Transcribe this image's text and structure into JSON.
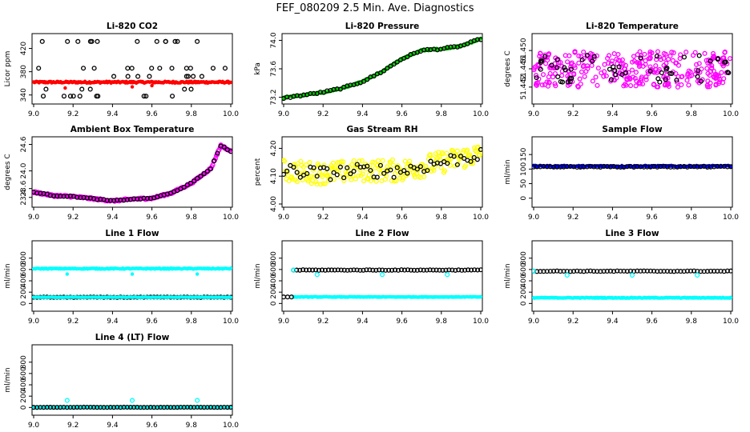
{
  "page_title": "FEF_080209  2.5 Min. Ave. Diagnostics",
  "colors": {
    "black": "#000000",
    "red": "#ff0000",
    "green": "#00cc00",
    "magenta": "#ff00ff",
    "yellow": "#ffff00",
    "blue": "#0000ff",
    "cyan": "#00ffff"
  },
  "chart_data": [
    {
      "title": "Li-820 CO2",
      "ylabel": "Licor ppm",
      "type": "scatter",
      "xlim": [
        9.0,
        10.0
      ],
      "ylim": [
        330,
        440
      ],
      "xticks": [
        "9.0",
        "9.2",
        "9.4",
        "9.6",
        "9.8",
        "10.0"
      ],
      "yticks": [
        "340",
        "380",
        "420"
      ],
      "series": [
        {
          "color": "#ff0000",
          "shape": "dense",
          "kind": "flat",
          "y": 362,
          "noise": 1.5,
          "outliers": [
            [
              9.16,
              352
            ],
            [
              9.5,
              354
            ],
            [
              9.6,
              356
            ]
          ]
        },
        {
          "color": "#000000",
          "shape": "ring",
          "kind": "scatter_levels",
          "levels": [
            338,
            350,
            372,
            386,
            432
          ]
        }
      ]
    },
    {
      "title": "Li-820 Pressure",
      "ylabel": "kPa",
      "type": "scatter",
      "xlim": [
        9.0,
        10.0
      ],
      "ylim": [
        73.15,
        74.05
      ],
      "xticks": [
        "9.0",
        "9.2",
        "9.4",
        "9.6",
        "9.8",
        "10.0"
      ],
      "yticks": [
        "73.2",
        "73.6",
        "74.0"
      ],
      "series": [
        {
          "color": "#00cc00",
          "shape": "dense",
          "kind": "curve",
          "points": [
            [
              9.0,
              73.19
            ],
            [
              9.1,
              73.23
            ],
            [
              9.2,
              73.27
            ],
            [
              9.3,
              73.33
            ],
            [
              9.4,
              73.42
            ],
            [
              9.5,
              73.56
            ],
            [
              9.6,
              73.74
            ],
            [
              9.7,
              73.86
            ],
            [
              9.8,
              73.88
            ],
            [
              9.9,
              73.92
            ],
            [
              10.0,
              74.02
            ]
          ],
          "noise": 0.012
        },
        {
          "color": "#000000",
          "shape": "ring",
          "kind": "curve",
          "points": [
            [
              9.0,
              73.19
            ],
            [
              9.1,
              73.23
            ],
            [
              9.2,
              73.27
            ],
            [
              9.3,
              73.33
            ],
            [
              9.4,
              73.42
            ],
            [
              9.5,
              73.56
            ],
            [
              9.6,
              73.74
            ],
            [
              9.7,
              73.86
            ],
            [
              9.8,
              73.88
            ],
            [
              9.9,
              73.92
            ],
            [
              10.0,
              74.02
            ]
          ],
          "noise": 0.01,
          "sparse": true
        }
      ]
    },
    {
      "title": "Li-820 Temperature",
      "ylabel": "degrees C",
      "type": "scatter",
      "xlim": [
        9.0,
        10.0
      ],
      "ylim": [
        51.439,
        51.453
      ],
      "xticks": [
        "9.0",
        "9.2",
        "9.4",
        "9.6",
        "9.8",
        "10.0"
      ],
      "yticks": [
        "51.442",
        "51.446",
        "51.450"
      ],
      "series": [
        {
          "color": "#ff00ff",
          "shape": "ring",
          "kind": "band",
          "center": 51.446,
          "spread": 0.004
        },
        {
          "color": "#000000",
          "shape": "ring",
          "kind": "band",
          "center": 51.446,
          "spread": 0.003,
          "sparse": true
        }
      ]
    },
    {
      "title": "Ambient Box Temperature",
      "ylabel": "degrees C",
      "type": "scatter",
      "xlim": [
        9.0,
        10.0
      ],
      "ylim": [
        23.25,
        24.7
      ],
      "xticks": [
        "9.0",
        "9.2",
        "9.4",
        "9.6",
        "9.8",
        "10.0"
      ],
      "yticks": [
        "23.4",
        "23.6",
        "24.0",
        "24.6"
      ],
      "series": [
        {
          "color": "#ff00ff",
          "shape": "ring",
          "kind": "curve",
          "points": [
            [
              9.0,
              23.52
            ],
            [
              9.1,
              23.44
            ],
            [
              9.2,
              23.42
            ],
            [
              9.3,
              23.37
            ],
            [
              9.4,
              23.32
            ],
            [
              9.5,
              23.36
            ],
            [
              9.6,
              23.38
            ],
            [
              9.7,
              23.5
            ],
            [
              9.8,
              23.72
            ],
            [
              9.9,
              24.06
            ],
            [
              9.95,
              24.58
            ],
            [
              10.0,
              24.44
            ]
          ],
          "noise": 0.02
        },
        {
          "color": "#000000",
          "shape": "ring",
          "kind": "curve",
          "points": [
            [
              9.0,
              23.52
            ],
            [
              9.1,
              23.44
            ],
            [
              9.2,
              23.42
            ],
            [
              9.3,
              23.37
            ],
            [
              9.4,
              23.32
            ],
            [
              9.5,
              23.36
            ],
            [
              9.6,
              23.38
            ],
            [
              9.7,
              23.5
            ],
            [
              9.8,
              23.72
            ],
            [
              9.9,
              24.06
            ],
            [
              9.95,
              24.58
            ],
            [
              10.0,
              24.44
            ]
          ],
          "noise": 0.01,
          "sparse": true
        }
      ]
    },
    {
      "title": "Gas Stream RH",
      "ylabel": "percent",
      "type": "scatter",
      "xlim": [
        9.0,
        10.0
      ],
      "ylim": [
        4.0,
        4.23
      ],
      "xticks": [
        "9.0",
        "9.2",
        "9.4",
        "9.6",
        "9.8",
        "10.0"
      ],
      "yticks": [
        "4.00",
        "4.10",
        "4.20"
      ],
      "series": [
        {
          "color": "#ffff00",
          "shape": "ring",
          "kind": "curve",
          "points": [
            [
              9.0,
              4.12
            ],
            [
              9.2,
              4.11
            ],
            [
              9.4,
              4.12
            ],
            [
              9.6,
              4.12
            ],
            [
              9.8,
              4.15
            ],
            [
              10.0,
              4.18
            ]
          ],
          "noise": 0.04
        },
        {
          "color": "#000000",
          "shape": "ring",
          "kind": "curve",
          "points": [
            [
              9.0,
              4.12
            ],
            [
              9.2,
              4.11
            ],
            [
              9.4,
              4.12
            ],
            [
              9.6,
              4.12
            ],
            [
              9.8,
              4.15
            ],
            [
              10.0,
              4.18
            ]
          ],
          "noise": 0.025,
          "sparse": true
        }
      ]
    },
    {
      "title": "Sample Flow",
      "ylabel": "ml/min",
      "type": "scatter",
      "xlim": [
        9.0,
        10.0
      ],
      "ylim": [
        -20,
        200
      ],
      "xticks": [
        "9.0",
        "9.2",
        "9.4",
        "9.6",
        "9.8",
        "10.0"
      ],
      "yticks": [
        "0",
        "50",
        "100",
        "150"
      ],
      "series": [
        {
          "color": "#0000ff",
          "shape": "dense",
          "kind": "flat",
          "y": 110,
          "noise": 2.5
        },
        {
          "color": "#000000",
          "shape": "ring",
          "kind": "flat",
          "y": 108,
          "noise": 1.5,
          "sparse": true
        }
      ]
    },
    {
      "title": "Line 1 Flow",
      "ylabel": "ml/min",
      "type": "scatter",
      "xlim": [
        9.0,
        10.0
      ],
      "ylim": [
        -80,
        1050
      ],
      "xticks": [
        "9.0",
        "9.2",
        "9.4",
        "9.6",
        "9.8",
        "10.0"
      ],
      "yticks": [
        "0",
        "200",
        "400",
        "600",
        "800"
      ],
      "series": [
        {
          "color": "#00ffff",
          "shape": "dense",
          "kind": "flat",
          "y": 615,
          "noise": 8,
          "outliers": [
            [
              9.17,
              520
            ],
            [
              9.5,
              520
            ],
            [
              9.83,
              520
            ]
          ]
        },
        {
          "color": "#000000",
          "shape": "ring",
          "kind": "flat",
          "y": 110,
          "noise": 4,
          "sparse": true
        },
        {
          "color": "#00ffff",
          "shape": "dense",
          "kind": "flat",
          "y": 110,
          "noise": 3
        }
      ]
    },
    {
      "title": "Line 2 Flow",
      "ylabel": "ml/min",
      "type": "scatter",
      "xlim": [
        9.0,
        10.0
      ],
      "ylim": [
        -80,
        1050
      ],
      "xticks": [
        "9.0",
        "9.2",
        "9.4",
        "9.6",
        "9.8",
        "10.0"
      ],
      "yticks": [
        "0",
        "200",
        "400",
        "600",
        "800"
      ],
      "series": [
        {
          "color": "#00ffff",
          "shape": "dense",
          "kind": "flat",
          "y": 115,
          "noise": 5,
          "x0": 9.05
        },
        {
          "color": "#000000",
          "shape": "ring",
          "kind": "flat",
          "y": 590,
          "noise": 5,
          "sparse": true,
          "x0": 9.05,
          "extra": [
            [
              9.0,
              115
            ],
            [
              9.02,
              115
            ],
            [
              9.04,
              115
            ]
          ]
        },
        {
          "color": "#00ffff",
          "shape": "ring",
          "kind": "points",
          "points": [
            [
              9.17,
              510
            ],
            [
              9.5,
              510
            ],
            [
              9.83,
              510
            ],
            [
              9.05,
              590
            ]
          ]
        }
      ]
    },
    {
      "title": "Line 3 Flow",
      "ylabel": "ml/min",
      "type": "scatter",
      "xlim": [
        9.0,
        10.0
      ],
      "ylim": [
        -80,
        1050
      ],
      "xticks": [
        "9.0",
        "9.2",
        "9.4",
        "9.6",
        "9.8",
        "10.0"
      ],
      "yticks": [
        "0",
        "200",
        "400",
        "600",
        "800"
      ],
      "series": [
        {
          "color": "#00ffff",
          "shape": "dense",
          "kind": "flat",
          "y": 100,
          "noise": 6
        },
        {
          "color": "#000000",
          "shape": "ring",
          "kind": "flat",
          "y": 570,
          "noise": 5,
          "sparse": true
        },
        {
          "color": "#00ffff",
          "shape": "ring",
          "kind": "points",
          "points": [
            [
              9.0,
              570
            ],
            [
              9.17,
              500
            ],
            [
              9.5,
              500
            ],
            [
              9.83,
              500
            ]
          ]
        }
      ]
    },
    {
      "title": "Line 4 (LT) Flow",
      "ylabel": "ml/min",
      "type": "scatter",
      "xlim": [
        9.0,
        10.0
      ],
      "ylim": [
        -80,
        1050
      ],
      "xticks": [
        "9.0",
        "9.2",
        "9.4",
        "9.6",
        "9.8",
        "10.0"
      ],
      "yticks": [
        "0",
        "200",
        "400",
        "600",
        "800"
      ],
      "series": [
        {
          "color": "#00ffff",
          "shape": "dense",
          "kind": "flat",
          "y": 3,
          "noise": 2
        },
        {
          "color": "#000000",
          "shape": "ring",
          "kind": "flat",
          "y": 3,
          "noise": 2,
          "sparse": true
        },
        {
          "color": "#00ffff",
          "shape": "ring",
          "kind": "points",
          "points": [
            [
              9.17,
              125
            ],
            [
              9.5,
              125
            ],
            [
              9.83,
              125
            ]
          ]
        }
      ]
    }
  ]
}
